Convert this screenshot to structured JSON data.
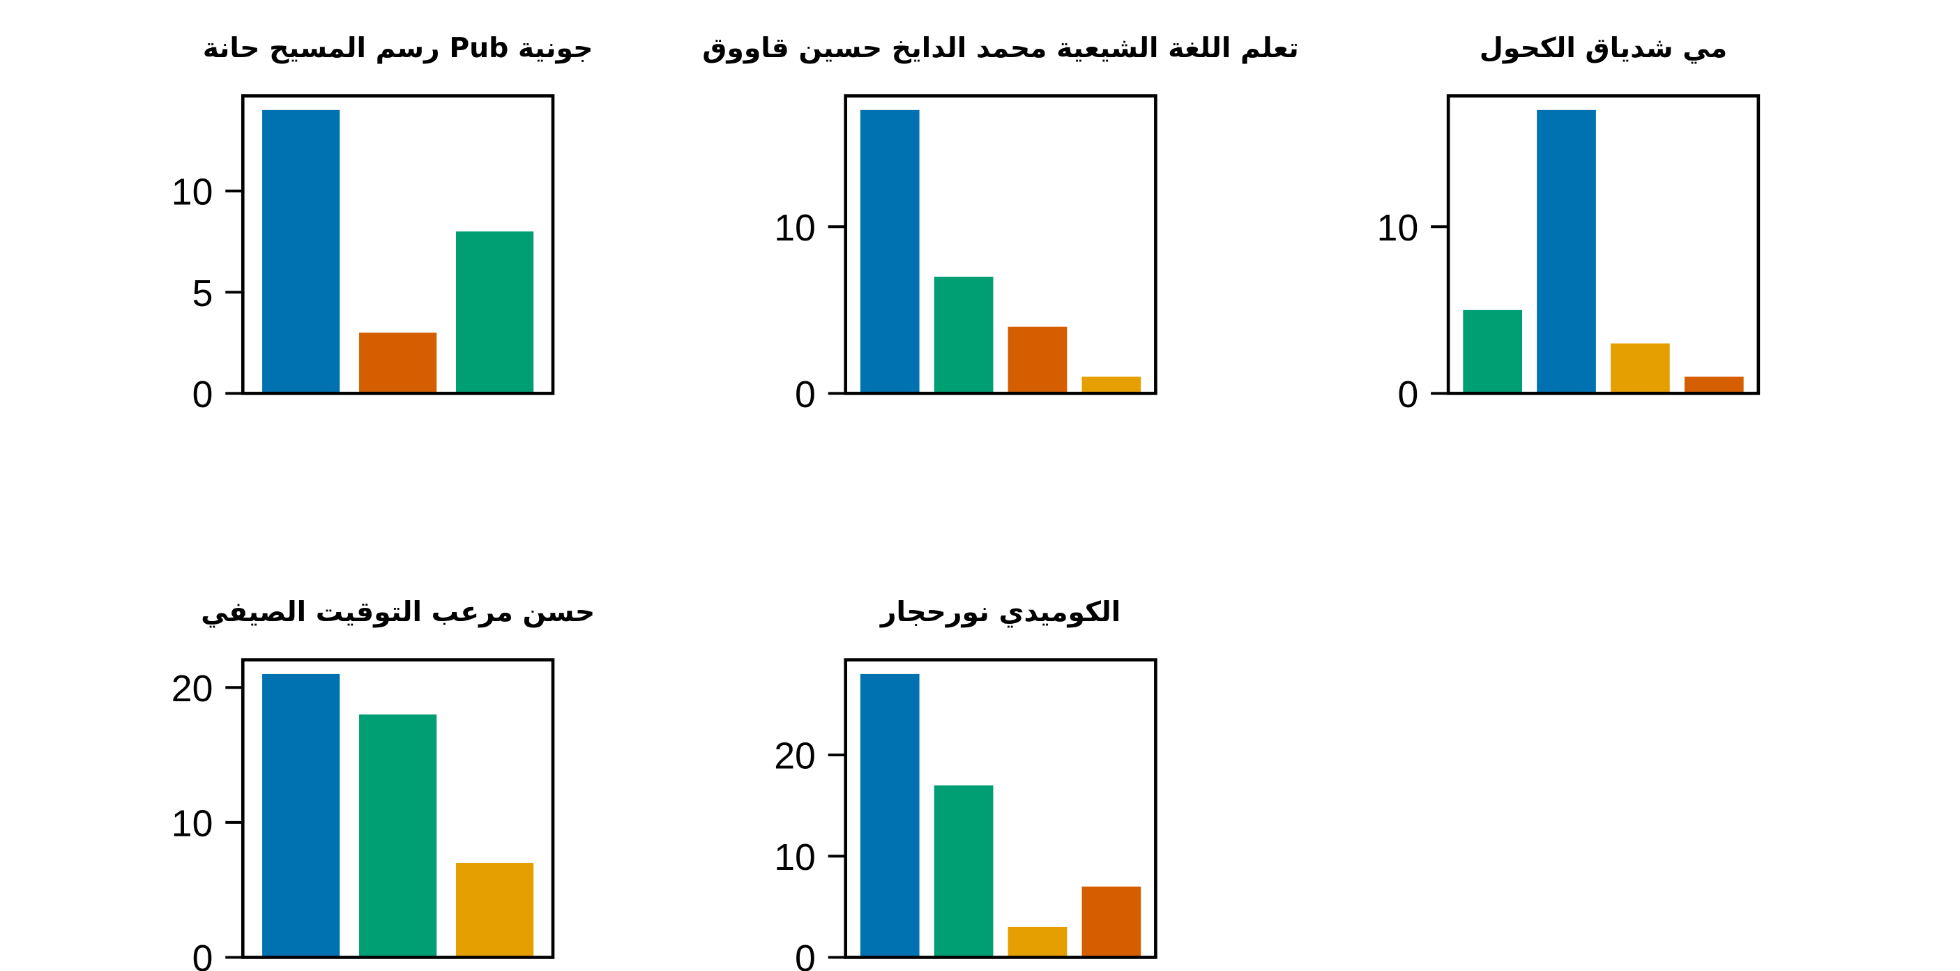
{
  "chart_data": [
    {
      "type": "bar",
      "title": "جونية Pub رسم المسيح حانة",
      "values": [
        14,
        3,
        8
      ],
      "colors": [
        "#0072b2",
        "#d55e00",
        "#009e73"
      ],
      "ylim": [
        0,
        14.7
      ],
      "yticks": [
        0,
        5,
        10
      ],
      "xlabel": "",
      "ylabel": "",
      "grid": false
    },
    {
      "type": "bar",
      "title": "تعلم اللغة الشيعية محمد الدايخ حسين قاووق",
      "values": [
        17,
        7,
        4,
        1
      ],
      "colors": [
        "#0072b2",
        "#009e73",
        "#d55e00",
        "#e69f00"
      ],
      "ylim": [
        0,
        17.85
      ],
      "yticks": [
        0,
        10
      ],
      "xlabel": "",
      "ylabel": "",
      "grid": false
    },
    {
      "type": "bar",
      "title": "مي شدياق الكحول",
      "values": [
        5,
        17,
        3,
        1
      ],
      "colors": [
        "#009e73",
        "#0072b2",
        "#e69f00",
        "#d55e00"
      ],
      "ylim": [
        0,
        17.85
      ],
      "yticks": [
        0,
        10
      ],
      "xlabel": "",
      "ylabel": "",
      "grid": false
    },
    {
      "type": "bar",
      "title": "حسن مرعب التوقيت الصيفي",
      "values": [
        21,
        18,
        7
      ],
      "colors": [
        "#0072b2",
        "#009e73",
        "#e69f00"
      ],
      "ylim": [
        0,
        22.05
      ],
      "yticks": [
        0,
        10,
        20
      ],
      "xlabel": "",
      "ylabel": "",
      "grid": false
    },
    {
      "type": "bar",
      "title": "الكوميدي نورحجار",
      "values": [
        28,
        17,
        3,
        7
      ],
      "colors": [
        "#0072b2",
        "#009e73",
        "#e69f00",
        "#d55e00"
      ],
      "ylim": [
        0,
        29.4
      ],
      "yticks": [
        0,
        10,
        20
      ],
      "xlabel": "",
      "ylabel": "",
      "grid": false
    }
  ]
}
